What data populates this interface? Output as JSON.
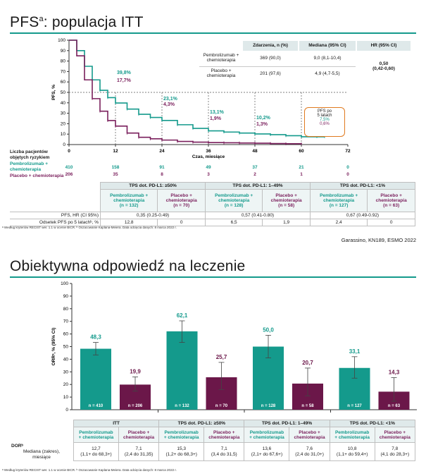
{
  "top": {
    "title": "PFS",
    "title_sup": "a",
    "title_rest": ": populacja ITT",
    "ylabel": "PFS, %",
    "xlabel": "Czas, miesiące",
    "risk_title": "Liczba pacjentów\nobjętych ryzykiem",
    "risk_rows": [
      {
        "label": "Pembrolizumab +\nchemioterapia",
        "values": [
          "410",
          "158",
          "91",
          "49",
          "37",
          "21",
          "0"
        ],
        "color": "#149a8c"
      },
      {
        "label": "Placebo + chemioterapia",
        "values": [
          "206",
          "35",
          "8",
          "3",
          "2",
          "1",
          "0"
        ],
        "color": "#7a1f5c"
      }
    ],
    "annotations": [
      {
        "teal": "39,8%",
        "plum": "17,7%"
      },
      {
        "teal": "23,1%",
        "plum": "4,3%"
      },
      {
        "teal": "13,1%",
        "plum": "1,9%"
      },
      {
        "teal": "10,2%",
        "plum": "1,3%"
      }
    ],
    "callout": {
      "title": "PFS po\n5 latach",
      "teal": "7,5%",
      "plum": "0,6%"
    },
    "inset": {
      "headers": [
        "Zdarzenia, n (%)",
        "Mediana (95% CI)",
        "HR (95% CI)"
      ],
      "rows": [
        {
          "label": "Pembrolizumab +\nchemioterapia",
          "events": "369 (90,0)",
          "median": "9,0 (8,1-10,4)"
        },
        {
          "label": "Placebo +\nchemioterapia",
          "events": "201 (97,6)",
          "median": "4,9 (4,7-5,5)"
        }
      ],
      "hr": "0,50\n(0,42-0,60)"
    },
    "subgroups": {
      "groups": [
        "TPS dot. PD-L1: ≥50%",
        "TPS dot. PD-L1: 1–49%",
        "TPS dot. PD-L1: <1%"
      ],
      "arms": [
        {
          "teal": "Pembrolizumab +\nchemioterapia\n(n = 132)",
          "plum": "Placebo +\nchemioterapia\n(n = 70)"
        },
        {
          "teal": "Pembrolizumab +\nchemioterapia\n(n = 128)",
          "plum": "Placebo +\nchemioterapia\n(n = 58)"
        },
        {
          "teal": "Pembrolizumab +\nchemioterapia\n(n = 127)",
          "plum": "Placebo +\nchemioterapia\n(n = 63)"
        }
      ],
      "hr_label": "PFS, HR (CI 95%)",
      "hr_values": [
        "0,35 (0.25-0.49)",
        "0,57 (0.41-0.80)",
        "0,67 (0.49-0.92)"
      ],
      "os5_label": "Odsetek PFS po 5 latachᵇ, %",
      "os5_values": [
        "12,8",
        "0",
        "6,5",
        "1,9",
        "2,4",
        "0"
      ]
    },
    "footnote": "ᵃ Według kryteriów RECIST wer. 1.1 w ocenie BICR. ᵇ Oszacowanie Kaplana-Meiera. Data odcięcia danych: 8 marca 2022 r.",
    "source": "Garassino, KN189, ESMO 2022"
  },
  "bottom": {
    "title": "Obiektywna odpowiedź na leczenie",
    "footnote": "ᵃ Według kryteriów RECIST wer. 1.1 w ocenie BICR. ᵇ Oszacowanie Kaplana-Meiera. Data odcięcia danych: 8 marca 2022 r.",
    "dor_label": "DORᵇ",
    "dor_sublabel": "Mediana (zakres),\nmiesiące",
    "table_groups": [
      "ITT",
      "TPS dot. PD-L1: ≥50%",
      "TPS dot. PD-L1: 1–49%",
      "TPS dot. PD-L1: <1%"
    ],
    "arm_teal": "Pembrolizumab\n+ chemioterapia",
    "arm_plum": "Placebo +\nchemioterapia",
    "dor_values": [
      "12,7\n(1,1+ do 68,3+)",
      "7,1\n(2,4 do 31,35)",
      "15,3\n(1,2+ do 68,3+)",
      "7,1\n(3,4 do 31,5)",
      "13,6\n(2,1+ do 67,6+)",
      "7,6\n(2,4 do 31,0+)",
      "10,8\n(1,1+ do 59,4+)",
      "7,8\n(4,1 do 28,3+)"
    ]
  },
  "chart_data": [
    {
      "type": "line",
      "title": "",
      "xlabel": "Czas, miesiące",
      "ylabel": "PFS, %",
      "xlim": [
        0,
        72
      ],
      "ylim": [
        0,
        100
      ],
      "xticks": [
        0,
        12,
        24,
        36,
        48,
        60,
        72
      ],
      "yticks": [
        0,
        10,
        20,
        30,
        40,
        50,
        60,
        70,
        80,
        90,
        100
      ],
      "series": [
        {
          "name": "Pembrolizumab + chemioterapia",
          "color": "#149a8c",
          "x": [
            0,
            2,
            4,
            6,
            8,
            10,
            12,
            15,
            18,
            21,
            24,
            28,
            32,
            36,
            40,
            44,
            48,
            52,
            56,
            60,
            64,
            66
          ],
          "y": [
            100,
            90,
            75,
            62,
            52,
            45,
            39.8,
            34,
            29,
            26,
            23.1,
            19,
            15.5,
            13.1,
            12,
            11,
            10.2,
            9.5,
            8.5,
            7.5,
            7.5,
            7.5
          ]
        },
        {
          "name": "Placebo + chemioterapia",
          "color": "#7a1f5c",
          "x": [
            0,
            2,
            4,
            6,
            8,
            10,
            12,
            15,
            18,
            21,
            24,
            28,
            32,
            36,
            40,
            44,
            48,
            52,
            56,
            60
          ],
          "y": [
            100,
            85,
            62,
            44,
            32,
            23,
            17.7,
            11,
            7,
            5.5,
            4.3,
            3,
            2.3,
            1.9,
            1.7,
            1.5,
            1.3,
            1.0,
            0.8,
            0.6
          ]
        }
      ]
    },
    {
      "type": "bar",
      "title": "",
      "ylabel": "ORRᵃ, % (95% CI)",
      "ylim": [
        0,
        100
      ],
      "yticks": [
        0,
        10,
        20,
        30,
        40,
        50,
        60,
        70,
        80,
        90,
        100
      ],
      "categories": [
        "ITT",
        "TPS dot. PD-L1: ≥50%",
        "TPS dot. PD-L1: 1–49%",
        "TPS dot. PD-L1: <1%"
      ],
      "series": [
        {
          "name": "Pembrolizumab + chemioterapia",
          "color": "#149a8c",
          "values": [
            48.3,
            62.1,
            50.0,
            33.1
          ],
          "labels": [
            "48,3",
            "62,1",
            "50,0",
            "33,1"
          ],
          "ci": [
            [
              43.4,
              53.3
            ],
            [
              53.3,
              70.4
            ],
            [
              41.0,
              59.0
            ],
            [
              25.0,
              42.0
            ]
          ],
          "n": [
            "n = 410",
            "n = 132",
            "n = 128",
            "n = 127"
          ]
        },
        {
          "name": "Placebo + chemioterapia",
          "color": "#6b1749",
          "values": [
            19.9,
            25.7,
            20.7,
            14.3
          ],
          "labels": [
            "19,9",
            "25,7",
            "20,7",
            "14,3"
          ],
          "ci": [
            [
              14.7,
              26.0
            ],
            [
              16.0,
              37.5
            ],
            [
              11.0,
              33.0
            ],
            [
              6.7,
              25.4
            ]
          ],
          "n": [
            "n = 206",
            "n = 70",
            "n = 58",
            "n = 63"
          ]
        }
      ]
    }
  ]
}
